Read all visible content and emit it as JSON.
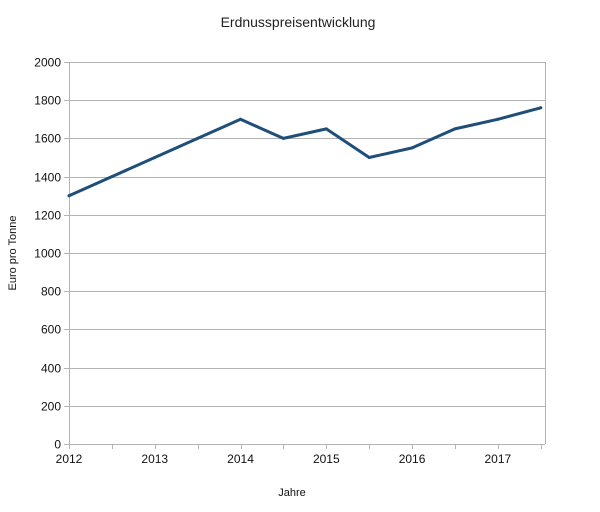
{
  "chart_data": {
    "type": "line",
    "title": "Erdnusspreisentwicklung",
    "xlabel": "Jahre",
    "ylabel": "Euro pro Tonne",
    "x": [
      2012,
      2012.5,
      2013,
      2013.5,
      2014,
      2014.5,
      2015,
      2015.5,
      2016,
      2016.5,
      2017,
      2017.5
    ],
    "x_tick_labels": [
      "2012",
      "2013",
      "2014",
      "2015",
      "2016",
      "2017"
    ],
    "x_tick_values": [
      2012,
      2013,
      2014,
      2015,
      2016,
      2017
    ],
    "xlim": [
      2012,
      2017.55
    ],
    "series": [
      {
        "values": [
          1300,
          1400,
          1500,
          1600,
          1700,
          1600,
          1650,
          1500,
          1550,
          1650,
          1700,
          1760
        ],
        "color": "#1f4e79"
      }
    ],
    "ylim": [
      0,
      2000
    ],
    "y_ticks": [
      0,
      200,
      400,
      600,
      800,
      1000,
      1200,
      1400,
      1600,
      1800,
      2000
    ],
    "grid": true,
    "grid_color": "#b3b3b3",
    "legend": "none"
  }
}
